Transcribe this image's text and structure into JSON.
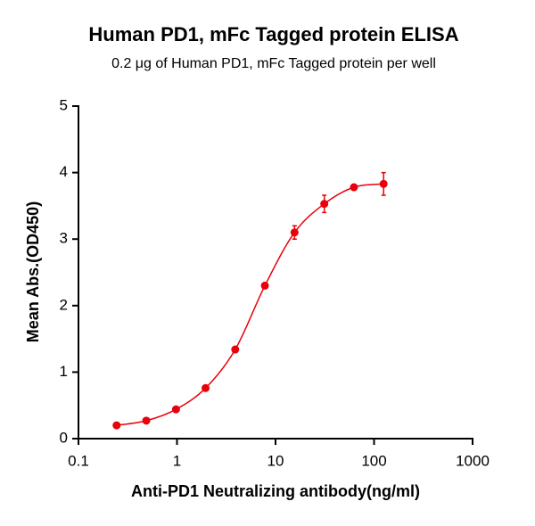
{
  "chart_data": {
    "type": "scatter",
    "title": "Human PD1,  mFc Tagged protein ELISA",
    "subtitle": "0.2 μg of Human PD1, mFc Tagged protein per well",
    "xlabel": "Anti-PD1 Neutralizing antibody(ng/ml)",
    "ylabel": "Mean Abs.(OD450)",
    "xscale": "log",
    "xlim": [
      0.1,
      1000
    ],
    "xticks": [
      0.1,
      1,
      10,
      100,
      1000
    ],
    "ylim": [
      0,
      5
    ],
    "yticks": [
      0,
      1,
      2,
      3,
      4,
      5
    ],
    "series": [
      {
        "color": "#e8000b",
        "x": [
          0.244,
          0.488,
          0.977,
          1.95,
          3.9,
          7.8,
          15.6,
          31.25,
          62.5,
          125
        ],
        "values": [
          0.2,
          0.27,
          0.44,
          0.76,
          1.34,
          2.3,
          3.1,
          3.53,
          3.78,
          3.83
        ],
        "errors": [
          0.02,
          0.02,
          0.03,
          0.03,
          0.03,
          0.03,
          0.1,
          0.13,
          0.03,
          0.17
        ]
      }
    ]
  }
}
